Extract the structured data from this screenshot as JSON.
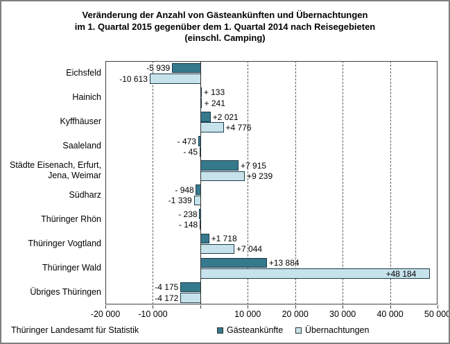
{
  "title": {
    "line1": "Veränderung der Anzahl von Gästeankünften und Übernachtungen",
    "line2": "im 1. Quartal 2015 gegenüber dem 1. Quartal 2014 nach Reisegebieten",
    "line3": "(einschl. Camping)"
  },
  "footer": {
    "source": "Thüringer Landesamt für Statistik"
  },
  "chart_data": {
    "type": "bar",
    "orientation": "horizontal",
    "categories": [
      "Eichsfeld",
      "Hainich",
      "Kyffhäuser",
      "Saaleland",
      "Städte Eisenach, Erfurt,\nJena, Weimar",
      "Südharz",
      "Thüringer Rhön",
      "Thüringer Vogtland",
      "Thüringer Wald",
      "Übriges Thüringen"
    ],
    "series": [
      {
        "name": "Gästeankünfte",
        "color": "#35798c",
        "values": [
          -5939,
          133,
          2021,
          -473,
          7915,
          -948,
          -238,
          1718,
          13884,
          -4175
        ],
        "labels": [
          "-5 939",
          "+ 133",
          "+2 021",
          "- 473",
          "+7 915",
          "- 948",
          "- 238",
          "+1 718",
          "+13 884",
          "-4 175"
        ]
      },
      {
        "name": "Übernachtungen",
        "color": "#c6e2ea",
        "values": [
          -10613,
          241,
          4776,
          -45,
          9239,
          -1339,
          -148,
          7044,
          48184,
          -4172
        ],
        "labels": [
          "-10 613",
          "+ 241",
          "+4 776",
          "- 45",
          "+9 239",
          "-1 339",
          "- 148",
          "+7 044",
          "+48 184",
          "-4 172"
        ]
      }
    ],
    "xlim": [
      -20000,
      50000
    ],
    "x_ticks": [
      -20000,
      -10000,
      0,
      10000,
      20000,
      30000,
      40000,
      50000
    ],
    "x_tick_labels": [
      "-20 000",
      "-10 000",
      "",
      "10 000",
      "20 000",
      "30 000",
      "40 000",
      "50 000"
    ],
    "grid": "vertical dashed every 10 000",
    "legend_position": "bottom"
  }
}
